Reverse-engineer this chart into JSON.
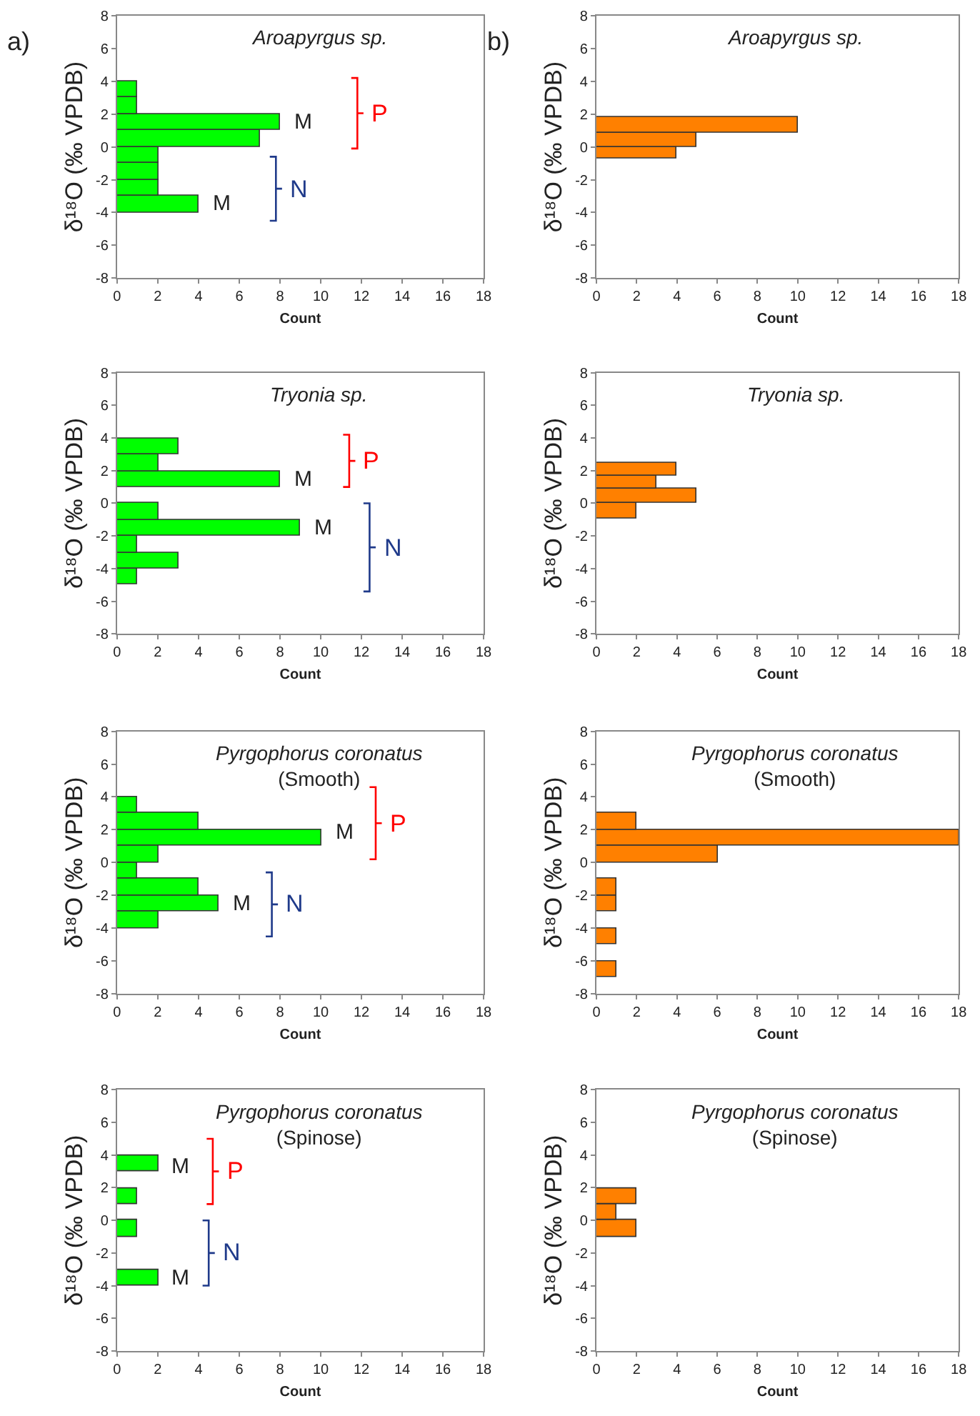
{
  "chart_data": [
    {
      "type": "histogram",
      "orientation": "horizontal",
      "title": "Aroapyrgus sp.",
      "xlabel": "Count",
      "ylabel": "δ¹⁸O (‰ VPDB)",
      "color": "#00ff00",
      "bins": [
        -4,
        -3,
        -2,
        -1,
        0,
        1,
        2,
        3,
        4
      ],
      "values": [
        4,
        2,
        2,
        2,
        7,
        8,
        1,
        1
      ],
      "xlim": [
        0,
        18
      ],
      "xticks": [
        0,
        2,
        4,
        6,
        8,
        10,
        12,
        14,
        16,
        18
      ],
      "ylim": [
        -8,
        8
      ],
      "yticks": [
        -8,
        -6,
        -4,
        -2,
        0,
        2,
        4,
        6,
        8
      ],
      "annotations": [
        "a)",
        {
          "text": "M",
          "x": 8,
          "y": 1.5
        },
        {
          "text": "M",
          "x": 4,
          "y": -3.5
        },
        "P",
        "N"
      ]
    },
    {
      "type": "histogram",
      "orientation": "horizontal",
      "title": "Aroapyrgus sp.",
      "xlabel": "Count",
      "ylabel": "δ¹⁸O (‰ VPDB)",
      "color": "#ff8000",
      "bins": [
        -0.7,
        0,
        0.9,
        1.8
      ],
      "values": [
        4,
        5,
        10
      ],
      "xlim": [
        0,
        18
      ],
      "xticks": [
        0,
        2,
        4,
        6,
        8,
        10,
        12,
        14,
        16,
        18
      ],
      "ylim": [
        -8,
        8
      ],
      "yticks": [
        -8,
        -6,
        -4,
        -2,
        0,
        2,
        4,
        6,
        8
      ],
      "annotations": [
        "b)"
      ]
    },
    {
      "type": "histogram",
      "orientation": "horizontal",
      "title": "Tryonia sp.",
      "xlabel": "Count",
      "ylabel": "δ¹⁸O (‰ VPDB)",
      "color": "#00ff00",
      "bins": [
        -5,
        -4,
        -3,
        -2,
        -1,
        0,
        1,
        2,
        3,
        4
      ],
      "values": [
        1,
        3,
        1,
        9,
        2,
        0,
        8,
        2,
        3
      ],
      "xlim": [
        0,
        18
      ],
      "xticks": [
        0,
        2,
        4,
        6,
        8,
        10,
        12,
        14,
        16,
        18
      ],
      "ylim": [
        -8,
        8
      ],
      "yticks": [
        -8,
        -6,
        -4,
        -2,
        0,
        2,
        4,
        6,
        8
      ],
      "annotations": [
        {
          "text": "M",
          "x": 8,
          "y": 1.5
        },
        {
          "text": "M",
          "x": 9,
          "y": -1.5
        },
        "P",
        "N"
      ]
    },
    {
      "type": "histogram",
      "orientation": "horizontal",
      "title": "Tryonia sp.",
      "xlabel": "Count",
      "ylabel": "δ¹⁸O (‰ VPDB)",
      "color": "#ff8000",
      "bins": [
        -0.9,
        0,
        0.9,
        1.7,
        2.5
      ],
      "values": [
        2,
        5,
        3,
        4
      ],
      "xlim": [
        0,
        18
      ],
      "xticks": [
        0,
        2,
        4,
        6,
        8,
        10,
        12,
        14,
        16,
        18
      ],
      "ylim": [
        -8,
        8
      ],
      "yticks": [
        -8,
        -6,
        -4,
        -2,
        0,
        2,
        4,
        6,
        8
      ]
    },
    {
      "type": "histogram",
      "orientation": "horizontal",
      "title": "Pyrgophorus coronatus",
      "subtitle": "(Smooth)",
      "xlabel": "Count",
      "ylabel": "δ¹⁸O (‰ VPDB)",
      "color": "#00ff00",
      "bins": [
        -4,
        -3,
        -2,
        -1,
        0,
        1,
        2,
        3,
        4
      ],
      "values": [
        2,
        5,
        4,
        1,
        2,
        10,
        4,
        1
      ],
      "xlim": [
        0,
        18
      ],
      "xticks": [
        0,
        2,
        4,
        6,
        8,
        10,
        12,
        14,
        16,
        18
      ],
      "ylim": [
        -8,
        8
      ],
      "yticks": [
        -8,
        -6,
        -4,
        -2,
        0,
        2,
        4,
        6,
        8
      ],
      "annotations": [
        {
          "text": "M",
          "x": 10,
          "y": 1.8
        },
        {
          "text": "M",
          "x": 5,
          "y": -2.5
        },
        "P",
        "N"
      ]
    },
    {
      "type": "histogram",
      "orientation": "horizontal",
      "title": "Pyrgophorus coronatus",
      "subtitle": "(Smooth)",
      "xlabel": "Count",
      "ylabel": "δ¹⁸O (‰ VPDB)",
      "color": "#ff8000",
      "bins": [
        -7,
        -6,
        -5,
        -4,
        -3,
        -2,
        -1,
        0,
        1,
        2,
        3
      ],
      "values": [
        1,
        0,
        1,
        0,
        1,
        1,
        0,
        6,
        18,
        2
      ],
      "xlim": [
        0,
        18
      ],
      "xticks": [
        0,
        2,
        4,
        6,
        8,
        10,
        12,
        14,
        16,
        18
      ],
      "ylim": [
        -8,
        8
      ],
      "yticks": [
        -8,
        -6,
        -4,
        -2,
        0,
        2,
        4,
        6,
        8
      ]
    },
    {
      "type": "histogram",
      "orientation": "horizontal",
      "title": "Pyrgophorus coronatus",
      "subtitle": "(Spinose)",
      "xlabel": "Count",
      "ylabel": "δ¹⁸O (‰ VPDB)",
      "color": "#00ff00",
      "bins": [
        -4,
        -3,
        -2,
        -1,
        0,
        1,
        2,
        3,
        4
      ],
      "values": [
        2,
        0,
        0,
        1,
        0,
        1,
        0,
        2
      ],
      "xlim": [
        0,
        18
      ],
      "xticks": [
        0,
        2,
        4,
        6,
        8,
        10,
        12,
        14,
        16,
        18
      ],
      "ylim": [
        -8,
        8
      ],
      "yticks": [
        -8,
        -6,
        -4,
        -2,
        0,
        2,
        4,
        6,
        8
      ],
      "annotations": [
        {
          "text": "M",
          "x": 2,
          "y": 3.3
        },
        {
          "text": "M",
          "x": 2,
          "y": -3.5
        },
        "P",
        "N"
      ]
    },
    {
      "type": "histogram",
      "orientation": "horizontal",
      "title": "Pyrgophorus coronatus",
      "subtitle": "(Spinose)",
      "xlabel": "Count",
      "ylabel": "δ¹⁸O (‰ VPDB)",
      "color": "#ff8000",
      "bins": [
        -1,
        0,
        1,
        2
      ],
      "values": [
        2,
        1,
        2
      ],
      "xlim": [
        0,
        18
      ],
      "xticks": [
        0,
        2,
        4,
        6,
        8,
        10,
        12,
        14,
        16,
        18
      ],
      "ylim": [
        -8,
        8
      ],
      "yticks": [
        -8,
        -6,
        -4,
        -2,
        0,
        2,
        4,
        6,
        8
      ]
    }
  ]
}
